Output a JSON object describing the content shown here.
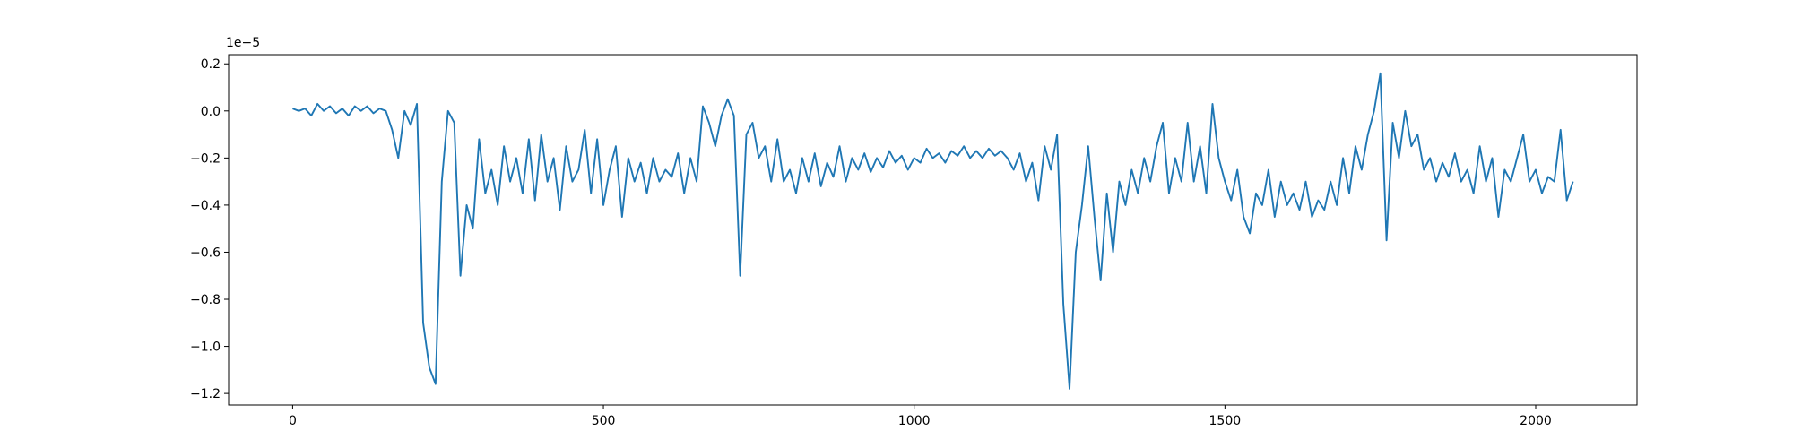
{
  "chart_data": {
    "type": "line",
    "y_offset_label": "1e−5",
    "x": [
      0,
      10,
      20,
      30,
      40,
      50,
      60,
      70,
      80,
      90,
      100,
      110,
      120,
      130,
      140,
      150,
      160,
      170,
      180,
      190,
      200,
      210,
      220,
      230,
      240,
      250,
      260,
      270,
      280,
      290,
      300,
      310,
      320,
      330,
      340,
      350,
      360,
      370,
      380,
      390,
      400,
      410,
      420,
      430,
      440,
      450,
      460,
      470,
      480,
      490,
      500,
      510,
      520,
      530,
      540,
      550,
      560,
      570,
      580,
      590,
      600,
      610,
      620,
      630,
      640,
      650,
      660,
      670,
      680,
      690,
      700,
      710,
      720,
      730,
      740,
      750,
      760,
      770,
      780,
      790,
      800,
      810,
      820,
      830,
      840,
      850,
      860,
      870,
      880,
      890,
      900,
      910,
      920,
      930,
      940,
      950,
      960,
      970,
      980,
      990,
      1000,
      1010,
      1020,
      1030,
      1040,
      1050,
      1060,
      1070,
      1080,
      1090,
      1100,
      1110,
      1120,
      1130,
      1140,
      1150,
      1160,
      1170,
      1180,
      1190,
      1200,
      1210,
      1220,
      1230,
      1240,
      1250,
      1260,
      1270,
      1280,
      1290,
      1300,
      1310,
      1320,
      1330,
      1340,
      1350,
      1360,
      1370,
      1380,
      1390,
      1400,
      1410,
      1420,
      1430,
      1440,
      1450,
      1460,
      1470,
      1480,
      1490,
      1500,
      1510,
      1520,
      1530,
      1540,
      1550,
      1560,
      1570,
      1580,
      1590,
      1600,
      1610,
      1620,
      1630,
      1640,
      1650,
      1660,
      1670,
      1680,
      1690,
      1700,
      1710,
      1720,
      1730,
      1740,
      1750,
      1760,
      1770,
      1780,
      1790,
      1800,
      1810,
      1820,
      1830,
      1840,
      1850,
      1860,
      1870,
      1880,
      1890,
      1900,
      1910,
      1920,
      1930,
      1940,
      1950,
      1960,
      1970,
      1980,
      1990,
      2000,
      2010,
      2020,
      2030,
      2040,
      2050,
      2060
    ],
    "series": [
      {
        "color": "#1f77b4",
        "values": [
          0.01,
          0.0,
          0.01,
          -0.02,
          0.03,
          0.0,
          0.02,
          -0.01,
          0.01,
          -0.02,
          0.02,
          0.0,
          0.02,
          -0.01,
          0.01,
          0.0,
          -0.08,
          -0.2,
          0.0,
          -0.06,
          0.03,
          -0.9,
          -1.09,
          -1.16,
          -0.3,
          0.0,
          -0.05,
          -0.7,
          -0.4,
          -0.5,
          -0.12,
          -0.35,
          -0.25,
          -0.4,
          -0.15,
          -0.3,
          -0.2,
          -0.35,
          -0.12,
          -0.38,
          -0.1,
          -0.3,
          -0.2,
          -0.42,
          -0.15,
          -0.3,
          -0.25,
          -0.08,
          -0.35,
          -0.12,
          -0.4,
          -0.25,
          -0.15,
          -0.45,
          -0.2,
          -0.3,
          -0.22,
          -0.35,
          -0.2,
          -0.3,
          -0.25,
          -0.28,
          -0.18,
          -0.35,
          -0.2,
          -0.3,
          0.02,
          -0.05,
          -0.15,
          -0.02,
          0.05,
          -0.02,
          -0.7,
          -0.1,
          -0.05,
          -0.2,
          -0.15,
          -0.3,
          -0.12,
          -0.3,
          -0.25,
          -0.35,
          -0.2,
          -0.3,
          -0.18,
          -0.32,
          -0.22,
          -0.28,
          -0.15,
          -0.3,
          -0.2,
          -0.25,
          -0.18,
          -0.26,
          -0.2,
          -0.24,
          -0.17,
          -0.22,
          -0.19,
          -0.25,
          -0.2,
          -0.22,
          -0.16,
          -0.2,
          -0.18,
          -0.22,
          -0.17,
          -0.19,
          -0.15,
          -0.2,
          -0.17,
          -0.2,
          -0.16,
          -0.19,
          -0.17,
          -0.2,
          -0.25,
          -0.18,
          -0.3,
          -0.22,
          -0.38,
          -0.15,
          -0.25,
          -0.1,
          -0.82,
          -1.18,
          -0.6,
          -0.4,
          -0.15,
          -0.45,
          -0.72,
          -0.35,
          -0.6,
          -0.3,
          -0.4,
          -0.25,
          -0.35,
          -0.2,
          -0.3,
          -0.15,
          -0.05,
          -0.35,
          -0.2,
          -0.3,
          -0.05,
          -0.3,
          -0.15,
          -0.35,
          0.03,
          -0.2,
          -0.3,
          -0.38,
          -0.25,
          -0.45,
          -0.52,
          -0.35,
          -0.4,
          -0.25,
          -0.45,
          -0.3,
          -0.4,
          -0.35,
          -0.42,
          -0.3,
          -0.45,
          -0.38,
          -0.42,
          -0.3,
          -0.4,
          -0.2,
          -0.35,
          -0.15,
          -0.25,
          -0.1,
          0.0,
          0.16,
          -0.55,
          -0.05,
          -0.2,
          0.0,
          -0.15,
          -0.1,
          -0.25,
          -0.2,
          -0.3,
          -0.22,
          -0.28,
          -0.18,
          -0.3,
          -0.25,
          -0.35,
          -0.15,
          -0.3,
          -0.2,
          -0.45,
          -0.25,
          -0.3,
          -0.2,
          -0.1,
          -0.3,
          -0.25,
          -0.35,
          -0.28,
          -0.3,
          -0.08,
          -0.38,
          -0.3
        ]
      }
    ],
    "xlim": [
      -103,
      2163
    ],
    "ylim": [
      -1.249,
      0.239
    ],
    "xticks": [
      0,
      500,
      1000,
      1500,
      2000
    ],
    "yticks": [
      0.2,
      {
        "value": 0,
        "label": "0.0"
      },
      {
        "value": -0.2,
        "label": "−0.2"
      },
      {
        "value": -0.4,
        "label": "−0.4"
      },
      {
        "value": -0.6,
        "label": "−0.6"
      },
      {
        "value": -0.8,
        "label": "−0.8"
      },
      {
        "value": -1.0,
        "label": "−1.0"
      },
      {
        "value": -1.2,
        "label": "−1.2"
      }
    ],
    "grid": false
  }
}
